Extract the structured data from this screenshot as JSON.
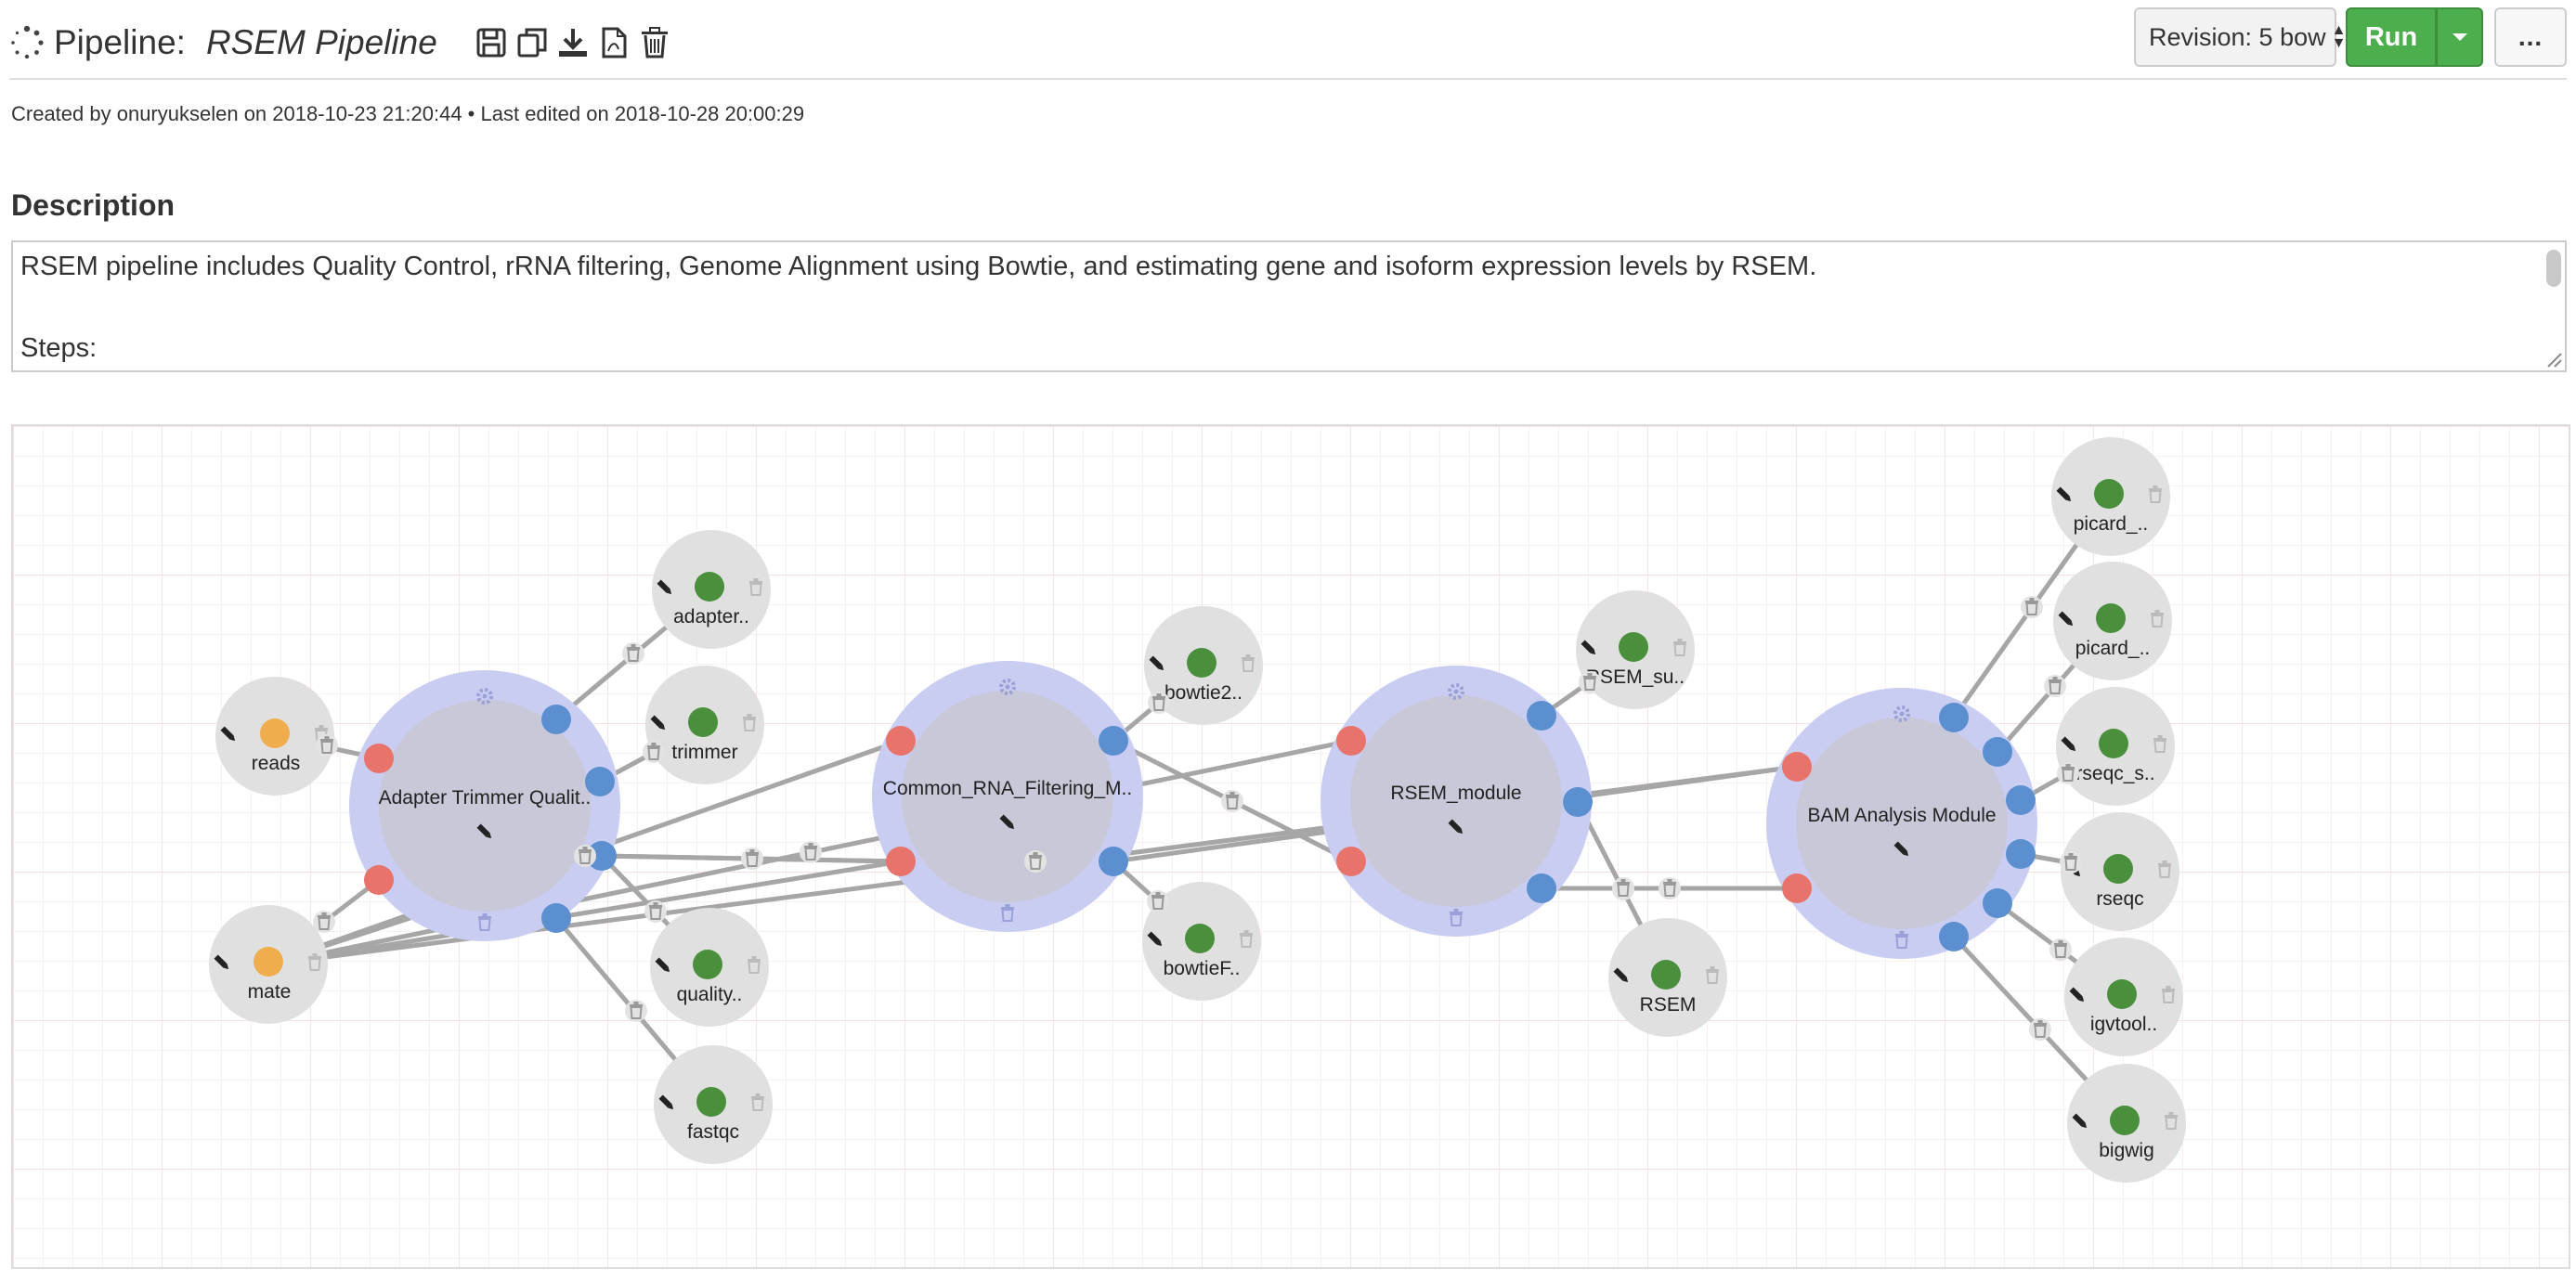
{
  "header": {
    "pipeline_label": "Pipeline:",
    "pipeline_name": "RSEM Pipeline",
    "revision": "Revision: 5 bow",
    "run_label": "Run",
    "more_label": "..."
  },
  "meta": {
    "text": "Created by onuryukselen on 2018-10-23 21:20:44 • Last edited on 2018-10-28 20:00:29"
  },
  "description": {
    "heading": "Description",
    "line1": "RSEM pipeline includes Quality Control, rRNA filtering, Genome Alignment using Bowtie, and estimating gene and isoform expression levels by RSEM.",
    "line2": "Steps:"
  },
  "colors": {
    "input": "#f0ad4e",
    "output": "#4a8f3c",
    "port_in": "#e8736b",
    "port_out": "#5b8fd0",
    "module_ring": "#c9cdf2",
    "module_core": "#c8c8d8",
    "process": "#e0e0e0"
  },
  "graph": {
    "inputs": [
      {
        "id": "reads",
        "label": "reads"
      },
      {
        "id": "mate",
        "label": "mate"
      }
    ],
    "modules": [
      {
        "id": "adapter",
        "label": "Adapter Trimmer Qualit.."
      },
      {
        "id": "common",
        "label": "Common_RNA_Filtering_M.."
      },
      {
        "id": "rsem",
        "label": "RSEM_module"
      },
      {
        "id": "bam",
        "label": "BAM Analysis Module"
      }
    ],
    "outputs": [
      {
        "id": "adapter_out",
        "label": "adapter.."
      },
      {
        "id": "trimmer",
        "label": "trimmer"
      },
      {
        "id": "quality",
        "label": "quality.."
      },
      {
        "id": "fastqc",
        "label": "fastqc"
      },
      {
        "id": "bowtie2",
        "label": "bowtie2.."
      },
      {
        "id": "bowtieF",
        "label": "bowtieF.."
      },
      {
        "id": "rsem_su",
        "label": "RSEM_su.."
      },
      {
        "id": "rsem_out",
        "label": "RSEM"
      },
      {
        "id": "picard1",
        "label": "picard_.."
      },
      {
        "id": "picard2",
        "label": "picard_.."
      },
      {
        "id": "rseqc_s",
        "label": "rseqc_s.."
      },
      {
        "id": "rseqc",
        "label": "rseqc"
      },
      {
        "id": "igvtool",
        "label": "igvtool.."
      },
      {
        "id": "bigwig",
        "label": "bigwig"
      }
    ]
  }
}
